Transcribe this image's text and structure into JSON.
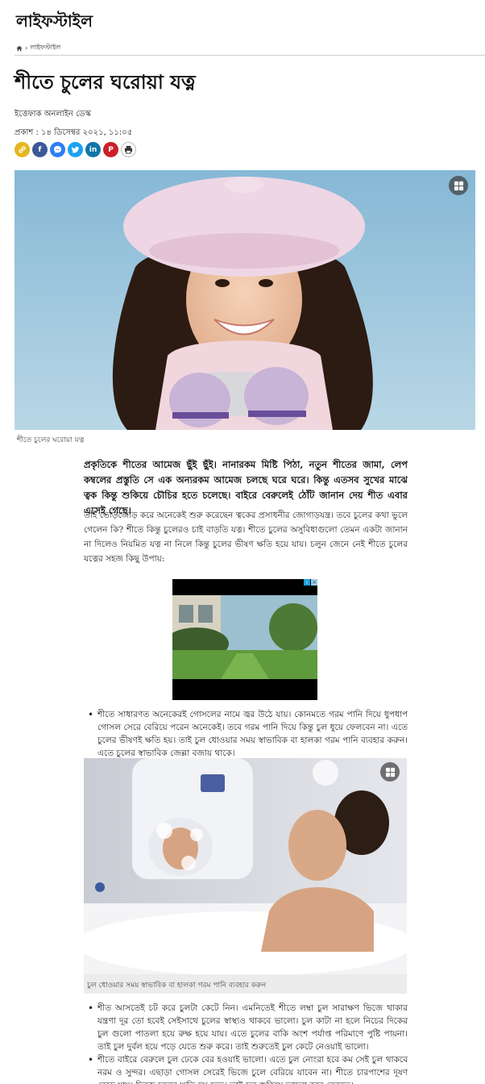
{
  "header": {
    "section_title": "লাইফস্টাইল"
  },
  "breadcrumb": {
    "home_icon": "home-icon",
    "separator": "›",
    "current": "লাইফস্টাইল"
  },
  "article": {
    "headline": "শীতে চুলের ঘরোয়া যত্ন",
    "author": "ইত্তেফাক অনলাইন ডেস্ক",
    "published": "প্রকাশ : ১৪ ডিসেম্বর ২০২১, ১১:০৫",
    "hero_caption": "শীতে চুলের ঘরোয়া যত্ন",
    "lead": "প্রকৃতিকে শীতের আমেজ ছুঁই ছুঁই। নানারকম মিষ্টি পিঠা, নতুন শীতের জামা, লেপ কম্বলের প্রস্তুতি সে এক অন্যরকম আমেজ চলছে ঘরে ঘরে। কিন্তু এতসব সুখের মাঝে ত্বক কিন্তু শুকিয়ে চৌচির হতে চলেছে। বাইরে বেরুলেই ঠোঁট জানান দেয় শীত এবার এসেই গেছে।",
    "paragraph": "তাই তোড়জোড় করে অনেকেই শুরু করেছেন ত্বকের প্রসাধনীর জোগাড়যন্ত্র। তবে চুলের কথা ভুলে গেলেন কি? শীতে কিন্তু চুলেরও চাই বাড়তি যত্ন। শীতে চুলের অসুবিধাগুলো তেমন একটা জানান না দিলেও নিয়মিত যত্ন না নিলে কিন্তু চুলের ভীষণ ক্ষতি হয়ে যায়। চলুন জেনে নেই শীতে চুলের যত্নের সহজ কিছু উপায়:",
    "tip1": "শীতে সাধারণত অনেকেরই গোসলের নামে জ্বর উঠে যায়। কোনমতে গরম পানি দিয়ে ধুপধাপ গোসল সেরে বেরিয়ে পরেন অনেকেই। তবে গরম পানি দিয়ে কিন্তু চুল ধুয়ে ফেলবেন না। এতে চুলের ভীষণই ক্ষতি হয়। তাই চুল ধোওয়ার সময় স্বাভাবিক বা হালকা গরম পানি ব্যবহার করুন। এতে চুলের স্বাভাবিক জেল্লা বজায় থাকে।",
    "bath_caption": "চুল ধোওয়ার সময় স্বাভাবিক বা হালকা গরম পানি ব্যবহার করুন",
    "tip2": "শীত আসতেই চট করে চুলটা কেটে নিন। এমনিতেই শীতে লম্বা চুল সারাক্ষণ ভিজে থাকার যন্ত্রণা দূর তো হবেই সেইসাথে চুলের স্বাস্থ্যও থাকবে ভালো। চুল কাটা না হলে নিচের দিকের চুল গুলো পাতলা হয়ে রুক্ষ হয়ে যায়। এতে চুলের বাকি অংশ পর্যাপ্ত পরিমাণে পুষ্টি পায়না। তাই চুল দুর্বল হয়ে পড়ে যেতে শুরু করে। তাই শুরুতেই চুল কেটে নেওয়াই ভালো।",
    "tip3": "শীতে বাইরে বেরুলে চুল ঢেকে বের হওয়াই ভালো। এতে চুল নোংরা হবে কম সেই চুল থাকবে নরম ও সুন্দর। এছাড়া গোসল সেরেই ভিজে চুলে বেরিয়ে যাবেন না। শীতে চারপাশের দূষণ বেড়ে যায়। ভিজে চুলের ক্ষতি হয় দ্রুত। তাই চুল শুকিয়ে ভালো করে বেরুতে।"
  },
  "share_icons": [
    {
      "name": "copy-link-icon",
      "glyph": "🔗",
      "color": "#e6b620"
    },
    {
      "name": "facebook-icon",
      "glyph": "f",
      "color": "#3b5998"
    },
    {
      "name": "messenger-icon",
      "glyph": "m",
      "color": "#2c7df6"
    },
    {
      "name": "twitter-icon",
      "glyph": "t",
      "color": "#1da1f2"
    },
    {
      "name": "linkedin-icon",
      "glyph": "in",
      "color": "#0e76a8"
    },
    {
      "name": "pinterest-icon",
      "glyph": "P",
      "color": "#cb2027"
    },
    {
      "name": "print-icon",
      "glyph": "⎙",
      "color": "#555555"
    }
  ],
  "ad": {
    "info_icon": "ad-info-icon",
    "close_icon": "ad-close-icon"
  }
}
